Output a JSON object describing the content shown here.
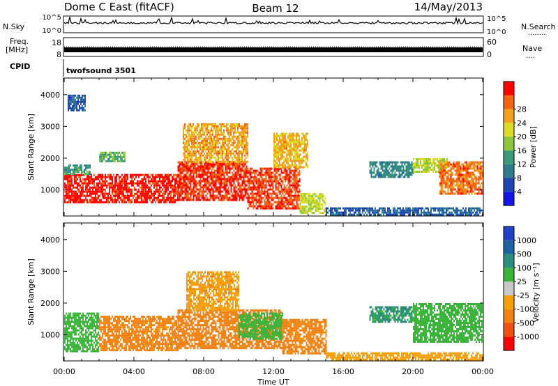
{
  "header": {
    "radar": "Dome C East (fitACF)",
    "beam": "Beam 12",
    "date": "14/May/2013"
  },
  "strips": {
    "nsky_label": "N.Sky",
    "nsearch_label": "N.Search",
    "nsearch_dots": "........",
    "exp_top": "10^5",
    "exp_bottom": "10^0",
    "freq_label": "Freq.",
    "freq_unit": "[MHz]",
    "freq_ticks": [
      "18",
      "8"
    ],
    "nave_label": "Nave",
    "nave_dots": "....",
    "nave_ticks": [
      "60",
      "0"
    ],
    "cpid_label": "CPID",
    "cpid_text": "twofsound  3501"
  },
  "colors": {
    "power_scale": [
      "#1414e6",
      "#1e46b4",
      "#2e7c8e",
      "#3c9a78",
      "#8cc83c",
      "#dcdc28",
      "#f0a01e",
      "#f06414",
      "#ff0000"
    ],
    "velocity_scale": [
      "#2040c8",
      "#1e64a0",
      "#2e8c7c",
      "#3cb43c",
      "#c8c8c8",
      "#f5a00a",
      "#f08214",
      "#f05014",
      "#ff0000"
    ]
  },
  "chart_data": [
    {
      "type": "heatmap",
      "panel": "power",
      "xlabel": "Time UT",
      "ylabel": "Slant Range [km]",
      "x_ticks": [
        "00:00",
        "04:00",
        "08:00",
        "12:00",
        "16:00",
        "20:00",
        "00:00"
      ],
      "y_ticks": [
        1000,
        2000,
        3000,
        4000
      ],
      "xlim_hours": [
        0,
        24
      ],
      "ylim_km": [
        200,
        4500
      ],
      "colorbar": {
        "label": "Power [dB]",
        "ticks": [
          "4",
          "8",
          "12",
          "16",
          "20",
          "24",
          "28"
        ],
        "range": [
          0,
          32
        ]
      },
      "regions": [
        {
          "t": [
            0.0,
            6.5
          ],
          "r": [
            600,
            1500
          ],
          "value": 30
        },
        {
          "t": [
            0.0,
            1.5
          ],
          "r": [
            1500,
            1800
          ],
          "value": 12
        },
        {
          "t": [
            2.0,
            3.5
          ],
          "r": [
            1900,
            2200
          ],
          "value": 14
        },
        {
          "t": [
            0.2,
            1.2
          ],
          "r": [
            3500,
            4000
          ],
          "value": 6
        },
        {
          "t": [
            6.5,
            10.5
          ],
          "r": [
            700,
            1900
          ],
          "value": 29
        },
        {
          "t": [
            6.8,
            10.5
          ],
          "r": [
            1900,
            3100
          ],
          "value": 23
        },
        {
          "t": [
            10.5,
            13.5
          ],
          "r": [
            400,
            1700
          ],
          "value": 28
        },
        {
          "t": [
            12.0,
            14.0
          ],
          "r": [
            1700,
            2800
          ],
          "value": 22
        },
        {
          "t": [
            13.5,
            15.0
          ],
          "r": [
            300,
            900
          ],
          "value": 18
        },
        {
          "t": [
            15.0,
            24.0
          ],
          "r": [
            250,
            450
          ],
          "value": 7
        },
        {
          "t": [
            17.5,
            20.0
          ],
          "r": [
            1400,
            1900
          ],
          "value": 10
        },
        {
          "t": [
            20.0,
            22.0
          ],
          "r": [
            1600,
            2000
          ],
          "value": 18
        },
        {
          "t": [
            21.5,
            24.0
          ],
          "r": [
            900,
            1900
          ],
          "value": 26
        }
      ]
    },
    {
      "type": "heatmap",
      "panel": "velocity",
      "xlabel": "Time UT",
      "ylabel": "Slant Range [km]",
      "x_ticks": [
        "00:00",
        "04:00",
        "08:00",
        "12:00",
        "16:00",
        "20:00",
        "00:00"
      ],
      "y_ticks": [
        1000,
        2000,
        3000,
        4000
      ],
      "xlim_hours": [
        0,
        24
      ],
      "ylim_km": [
        200,
        4500
      ],
      "colorbar": {
        "label": "Velocity  [m s⁻¹]",
        "ticks": [
          "1000",
          "500",
          "100",
          "25",
          "-25",
          "-100",
          "-500",
          "-1000"
        ],
        "levels": [
          1000,
          500,
          100,
          25,
          -25,
          -100,
          -500,
          -1000
        ]
      },
      "regions": [
        {
          "t": [
            0.0,
            2.0
          ],
          "r": [
            500,
            1700
          ],
          "value": 60
        },
        {
          "t": [
            2.0,
            6.5
          ],
          "r": [
            500,
            1600
          ],
          "value": -150
        },
        {
          "t": [
            6.5,
            12.5
          ],
          "r": [
            600,
            1800
          ],
          "value": -200
        },
        {
          "t": [
            7.0,
            10.0
          ],
          "r": [
            1800,
            3000
          ],
          "value": -80
        },
        {
          "t": [
            10.0,
            12.5
          ],
          "r": [
            900,
            1700
          ],
          "value": 40
        },
        {
          "t": [
            12.5,
            15.0
          ],
          "r": [
            400,
            1500
          ],
          "value": -150
        },
        {
          "t": [
            15.0,
            24.0
          ],
          "r": [
            250,
            450
          ],
          "value": -50
        },
        {
          "t": [
            17.5,
            20.0
          ],
          "r": [
            1400,
            1900
          ],
          "value": 120
        },
        {
          "t": [
            20.0,
            24.0
          ],
          "r": [
            800,
            2000
          ],
          "value": 60
        }
      ]
    }
  ]
}
